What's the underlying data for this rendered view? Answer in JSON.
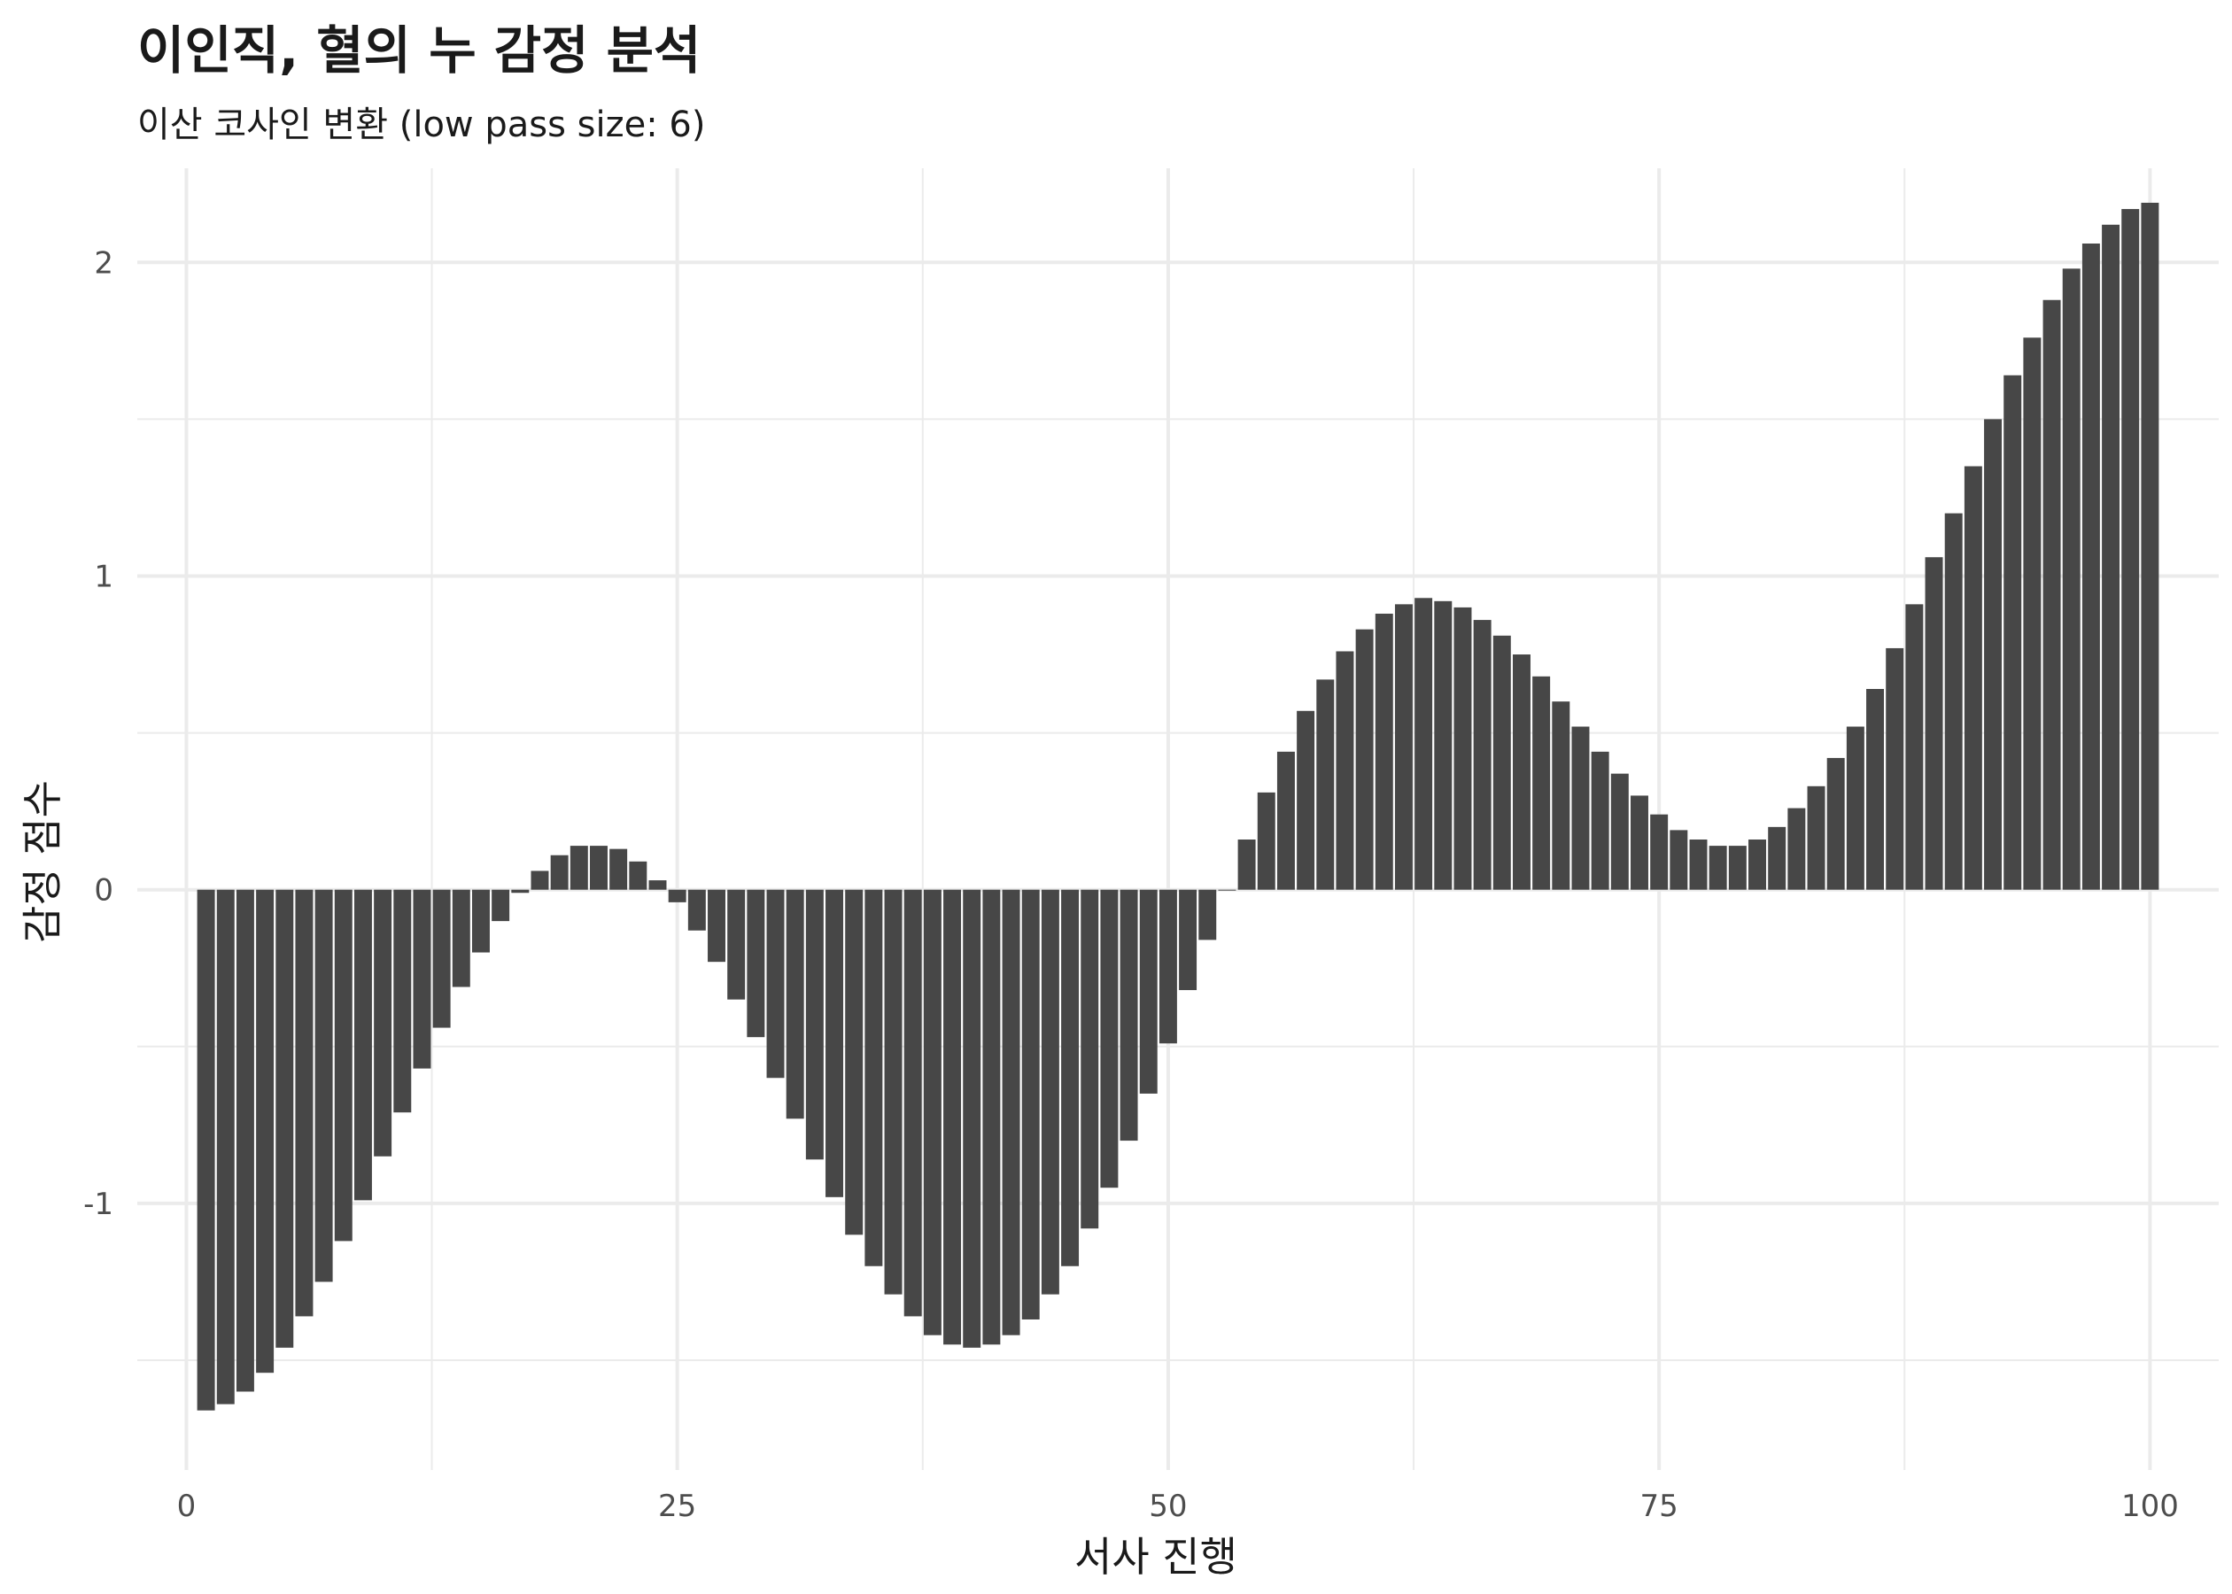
{
  "chart_data": {
    "type": "bar",
    "title": "이인직, 혈의 누 감정 분석",
    "subtitle": "이산 코사인 변환 (low pass size: 6)",
    "xlabel": "서사 진행",
    "ylabel": "감정 점수",
    "x": [
      1,
      2,
      3,
      4,
      5,
      6,
      7,
      8,
      9,
      10,
      11,
      12,
      13,
      14,
      15,
      16,
      17,
      18,
      19,
      20,
      21,
      22,
      23,
      24,
      25,
      26,
      27,
      28,
      29,
      30,
      31,
      32,
      33,
      34,
      35,
      36,
      37,
      38,
      39,
      40,
      41,
      42,
      43,
      44,
      45,
      46,
      47,
      48,
      49,
      50,
      51,
      52,
      53,
      54,
      55,
      56,
      57,
      58,
      59,
      60,
      61,
      62,
      63,
      64,
      65,
      66,
      67,
      68,
      69,
      70,
      71,
      72,
      73,
      74,
      75,
      76,
      77,
      78,
      79,
      80,
      81,
      82,
      83,
      84,
      85,
      86,
      87,
      88,
      89,
      90,
      91,
      92,
      93,
      94,
      95,
      96,
      97,
      98,
      99,
      100
    ],
    "values": [
      -1.66,
      -1.64,
      -1.6,
      -1.54,
      -1.46,
      -1.36,
      -1.25,
      -1.12,
      -0.99,
      -0.85,
      -0.71,
      -0.57,
      -0.44,
      -0.31,
      -0.2,
      -0.1,
      -0.01,
      0.06,
      0.11,
      0.14,
      0.14,
      0.13,
      0.09,
      0.03,
      -0.04,
      -0.13,
      -0.23,
      -0.35,
      -0.47,
      -0.6,
      -0.73,
      -0.86,
      -0.98,
      -1.1,
      -1.2,
      -1.29,
      -1.36,
      -1.42,
      -1.45,
      -1.46,
      -1.45,
      -1.42,
      -1.37,
      -1.29,
      -1.2,
      -1.08,
      -0.95,
      -0.8,
      -0.65,
      -0.49,
      -0.32,
      -0.16,
      0.0,
      0.16,
      0.31,
      0.44,
      0.57,
      0.67,
      0.76,
      0.83,
      0.88,
      0.91,
      0.93,
      0.92,
      0.9,
      0.86,
      0.81,
      0.75,
      0.68,
      0.6,
      0.52,
      0.44,
      0.37,
      0.3,
      0.24,
      0.19,
      0.16,
      0.14,
      0.14,
      0.16,
      0.2,
      0.26,
      0.33,
      0.42,
      0.52,
      0.64,
      0.77,
      0.91,
      1.06,
      1.2,
      1.35,
      1.5,
      1.64,
      1.76,
      1.88,
      1.98,
      2.06,
      2.12,
      2.17,
      2.19
    ],
    "xlim": [
      -2.5,
      103.5
    ],
    "ylim": [
      -1.85,
      2.3
    ],
    "x_ticks": [
      0,
      25,
      50,
      75,
      100
    ],
    "y_ticks": [
      -1,
      0,
      1,
      2
    ],
    "grid": true,
    "legend": "none",
    "bar_color": "#474747",
    "grid_color": "#ebebeb"
  }
}
